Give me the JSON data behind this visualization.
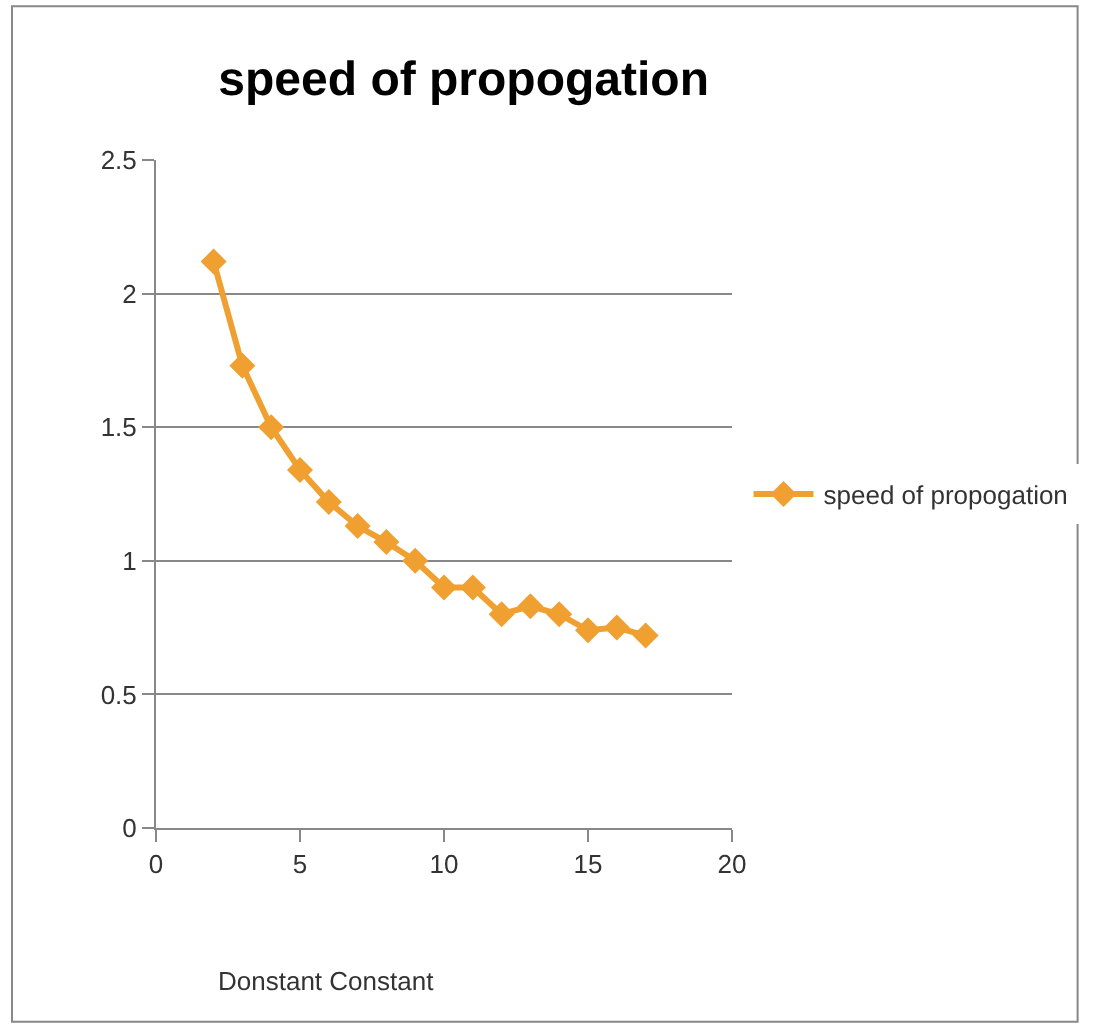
{
  "chart_data": {
    "type": "line",
    "title": "speed of propogation",
    "xlabel": "Donstant Constant",
    "x": [
      2,
      3,
      4,
      5,
      6,
      7,
      8,
      9,
      10,
      11,
      12,
      13,
      14,
      15,
      16,
      17
    ],
    "series": [
      {
        "name": "speed of propogation",
        "color": "#f0a030",
        "values": [
          2.12,
          1.73,
          1.5,
          1.34,
          1.22,
          1.13,
          1.07,
          1.0,
          0.9,
          0.9,
          0.8,
          0.83,
          0.8,
          0.74,
          0.75,
          0.72
        ]
      }
    ],
    "xlim": [
      0,
      20
    ],
    "xticks": [
      0,
      5,
      10,
      15,
      20
    ],
    "ylim": [
      0,
      2.5
    ],
    "yticks": [
      0,
      0.5,
      1,
      1.5,
      2,
      2.5
    ],
    "grid": "y",
    "legend": "right",
    "marker": "diamond",
    "line_style": "solid"
  }
}
